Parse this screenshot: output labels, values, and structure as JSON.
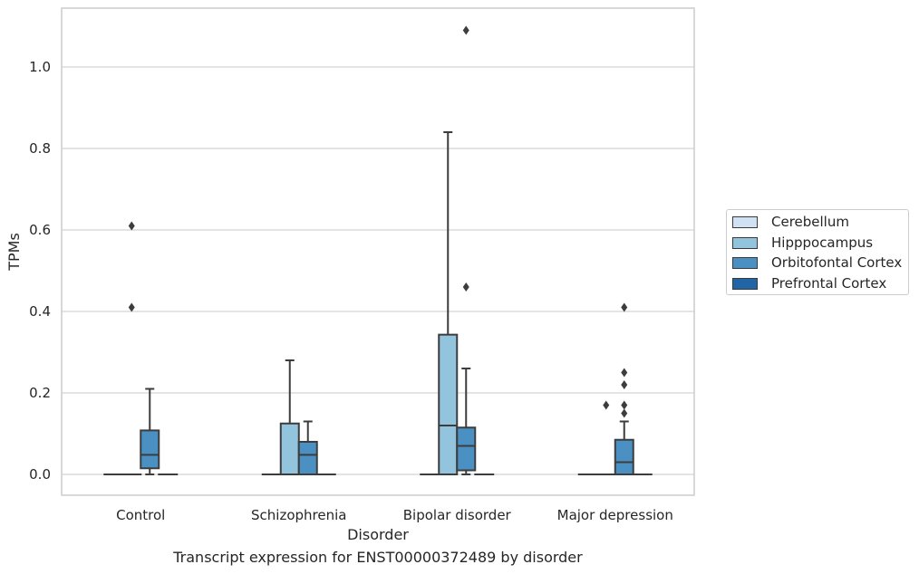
{
  "chart_data": {
    "type": "box",
    "xlabel": "Disorder",
    "ylabel": "TPMs",
    "caption": "Transcript expression for ENST00000372489 by disorder",
    "categories": [
      "Control",
      "Schizophrenia",
      "Bipolar disorder",
      "Major depression"
    ],
    "ylim": [
      -0.05,
      1.15
    ],
    "yticks": [
      "0.0",
      "0.2",
      "0.4",
      "0.6",
      "0.8",
      "1.0"
    ],
    "grid": "horizontal",
    "legend_position": "right",
    "series": [
      {
        "name": "Cerebellum",
        "color": "#cfe1f2",
        "boxes": [
          {
            "q1": 0,
            "median": 0,
            "q3": 0,
            "whisker_low": 0,
            "whisker_high": 0,
            "outliers": []
          },
          {
            "q1": 0,
            "median": 0,
            "q3": 0,
            "whisker_low": 0,
            "whisker_high": 0,
            "outliers": []
          },
          {
            "q1": 0,
            "median": 0,
            "q3": 0,
            "whisker_low": 0,
            "whisker_high": 0,
            "outliers": []
          },
          {
            "q1": 0,
            "median": 0,
            "q3": 0,
            "whisker_low": 0,
            "whisker_high": 0,
            "outliers": []
          }
        ]
      },
      {
        "name": "Hipppocampus",
        "color": "#93c4de",
        "boxes": [
          {
            "q1": 0,
            "median": 0,
            "q3": 0,
            "whisker_low": 0,
            "whisker_high": 0,
            "outliers": [
              0.61,
              0.41
            ]
          },
          {
            "q1": 0,
            "median": 0,
            "q3": 0.125,
            "whisker_low": 0,
            "whisker_high": 0.28,
            "outliers": []
          },
          {
            "q1": 0,
            "median": 0.12,
            "q3": 0.343,
            "whisker_low": 0,
            "whisker_high": 0.84,
            "outliers": []
          },
          {
            "q1": 0,
            "median": 0,
            "q3": 0,
            "whisker_low": 0,
            "whisker_high": 0,
            "outliers": [
              0.17
            ]
          }
        ]
      },
      {
        "name": "Orbitofontal Cortex",
        "color": "#4a90c2",
        "boxes": [
          {
            "q1": 0.015,
            "median": 0.048,
            "q3": 0.108,
            "whisker_low": 0,
            "whisker_high": 0.21,
            "outliers": []
          },
          {
            "q1": 0,
            "median": 0.048,
            "q3": 0.08,
            "whisker_low": 0,
            "whisker_high": 0.13,
            "outliers": []
          },
          {
            "q1": 0.01,
            "median": 0.07,
            "q3": 0.115,
            "whisker_low": 0,
            "whisker_high": 0.26,
            "outliers": [
              1.09,
              0.46
            ]
          },
          {
            "q1": 0,
            "median": 0.03,
            "q3": 0.085,
            "whisker_low": 0,
            "whisker_high": 0.13,
            "outliers": [
              0.41,
              0.25,
              0.22,
              0.17,
              0.15
            ]
          }
        ]
      },
      {
        "name": "Prefrontal Cortex",
        "color": "#2265a6",
        "boxes": [
          {
            "q1": 0,
            "median": 0,
            "q3": 0,
            "whisker_low": 0,
            "whisker_high": 0,
            "outliers": []
          },
          {
            "q1": 0,
            "median": 0,
            "q3": 0,
            "whisker_low": 0,
            "whisker_high": 0,
            "outliers": []
          },
          {
            "q1": 0,
            "median": 0,
            "q3": 0,
            "whisker_low": 0,
            "whisker_high": 0,
            "outliers": []
          },
          {
            "q1": 0,
            "median": 0,
            "q3": 0,
            "whisker_low": 0,
            "whisker_high": 0,
            "outliers": []
          }
        ]
      }
    ]
  }
}
